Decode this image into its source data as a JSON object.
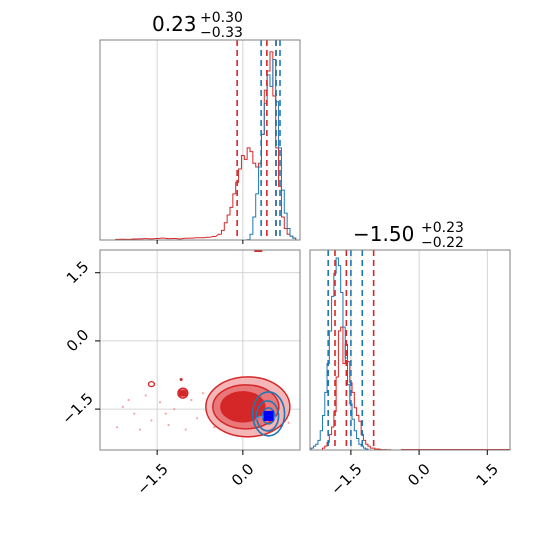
{
  "colors": {
    "red": "#d62728",
    "blue": "#1f77b4",
    "red_fill_light": "#f4b6b7",
    "red_fill_mid": "#e8787a",
    "red_fill_dark": "#d62728",
    "grid": "#c8c8c8",
    "frame": "#808080"
  },
  "chart_data": {
    "type": "corner",
    "parameters": [
      {
        "summary_value": "0.23",
        "summary_plus": "+0.30",
        "summary_minus": "−0.33",
        "xlim": [
          -2.5,
          1.0
        ],
        "ticks": [
          -1.5,
          0.0
        ],
        "tick_labels": [
          "−1.5",
          "0.0"
        ],
        "quantile_lines": {
          "red": [
            -0.1,
            0.42,
            0.58
          ],
          "blue": [
            0.32,
            0.58,
            0.65
          ]
        }
      },
      {
        "summary_value": "−1.50",
        "summary_plus": "+0.23",
        "summary_minus": "−0.22",
        "xlim": [
          -2.4,
          2.0
        ],
        "ticks": [
          -1.5,
          0.0,
          1.5
        ],
        "tick_labels": [
          "−1.5",
          "0.0",
          "1.5"
        ],
        "quantile_lines": {
          "blue": [
            -2.0,
            -1.5,
            -1.25
          ],
          "red": [
            -1.85,
            -1.6,
            -1.0
          ]
        }
      }
    ],
    "joint": {
      "xlim": [
        -2.5,
        1.0
      ],
      "ylim": [
        -2.4,
        2.0
      ],
      "xticks": [
        -1.5,
        0.0
      ],
      "xtick_labels": [
        "−1.5",
        "0.0"
      ],
      "yticks": [
        -1.5,
        0.0,
        1.5
      ],
      "ytick_labels": [
        "−1.5",
        "0.0",
        "1.5"
      ],
      "red_center": [
        0.0,
        -1.45
      ],
      "blue_center": [
        0.45,
        -1.65
      ],
      "red_marker": [
        -1.05,
        -1.15
      ],
      "blue_marker": [
        0.45,
        -1.65
      ]
    },
    "hist1": {
      "xlim": [
        -2.5,
        1.0
      ],
      "bins_x": [
        -2.2,
        -2.1,
        -2.0,
        -1.9,
        -1.8,
        -1.7,
        -1.6,
        -1.5,
        -1.4,
        -1.3,
        -1.2,
        -1.1,
        -1.0,
        -0.9,
        -0.8,
        -0.7,
        -0.6,
        -0.5,
        -0.4,
        -0.35,
        -0.3,
        -0.25,
        -0.2,
        -0.15,
        -0.1,
        -0.05,
        0.0,
        0.05,
        0.1,
        0.15,
        0.2,
        0.25,
        0.3,
        0.35,
        0.4,
        0.45,
        0.5,
        0.55,
        0.6,
        0.65,
        0.7,
        0.75,
        0.8,
        0.85,
        0.9
      ],
      "red": [
        0.003,
        0.004,
        0.003,
        0.005,
        0.006,
        0.007,
        0.006,
        0.008,
        0.01,
        0.007,
        0.008,
        0.006,
        0.009,
        0.01,
        0.012,
        0.012,
        0.014,
        0.018,
        0.03,
        0.05,
        0.09,
        0.13,
        0.17,
        0.24,
        0.3,
        0.37,
        0.44,
        0.42,
        0.48,
        0.46,
        0.4,
        0.38,
        0.4,
        0.55,
        0.78,
        0.88,
        0.98,
        0.75,
        0.48,
        0.28,
        0.12,
        0.06,
        0.03,
        0.02,
        0.01
      ],
      "blue": [
        0,
        0,
        0,
        0,
        0,
        0,
        0,
        0,
        0,
        0,
        0,
        0,
        0,
        0,
        0,
        0,
        0,
        0,
        0,
        0,
        0,
        0,
        0,
        0,
        0,
        0,
        0,
        0,
        0.002,
        0.03,
        0.12,
        0.24,
        0.38,
        0.55,
        0.71,
        0.86,
        0.8,
        0.94,
        0.72,
        0.48,
        0.26,
        0.14,
        0.06,
        0.02,
        0.01
      ]
    },
    "hist2": {
      "xlim": [
        -2.4,
        2.0
      ],
      "bins_x": [
        -2.35,
        -2.3,
        -2.25,
        -2.2,
        -2.15,
        -2.1,
        -2.05,
        -2.0,
        -1.95,
        -1.9,
        -1.85,
        -1.8,
        -1.75,
        -1.7,
        -1.65,
        -1.6,
        -1.55,
        -1.5,
        -1.45,
        -1.4,
        -1.35,
        -1.3,
        -1.25,
        -1.2,
        -1.15,
        -1.1,
        -1.05,
        -1.0,
        -0.95,
        -0.9,
        -0.85,
        -0.8,
        -0.75,
        -0.7,
        -0.65,
        -0.6,
        -0.55,
        -0.5,
        -0.45,
        -0.4
      ],
      "blue": [
        0.01,
        0.02,
        0.03,
        0.05,
        0.1,
        0.18,
        0.3,
        0.45,
        0.62,
        0.8,
        0.92,
        1.0,
        0.96,
        0.82,
        0.64,
        0.48,
        0.34,
        0.24,
        0.16,
        0.1,
        0.06,
        0.03,
        0.02,
        0.01,
        0.005,
        0,
        0,
        0,
        0,
        0,
        0,
        0,
        0,
        0,
        0,
        0,
        0,
        0,
        0,
        0
      ],
      "red": [
        0,
        0,
        0,
        0,
        0,
        0.01,
        0.02,
        0.04,
        0.08,
        0.12,
        0.2,
        0.38,
        0.62,
        0.64,
        0.45,
        0.55,
        0.46,
        0.35,
        0.3,
        0.22,
        0.18,
        0.15,
        0.08,
        0.05,
        0.03,
        0.02,
        0.01,
        0.01,
        0.005,
        0.005,
        0.003,
        0.002,
        0.002,
        0.001,
        0.001,
        0,
        0,
        0,
        0,
        0
      ]
    }
  }
}
